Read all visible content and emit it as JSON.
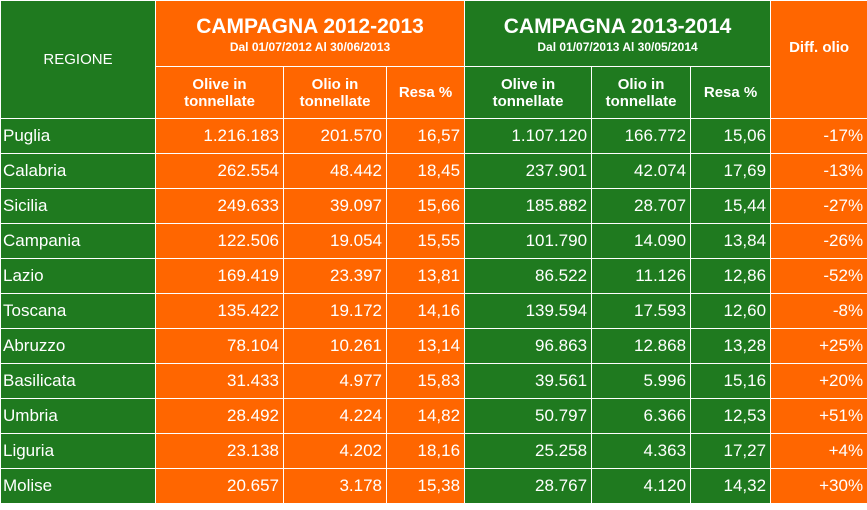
{
  "header": {
    "region_label": "REGIONE",
    "campaign1": {
      "title": "CAMPAGNA 2012-2013",
      "subtitle": "Dal 01/07/2012 Al 30/06/2013"
    },
    "campaign2": {
      "title": "CAMPAGNA 2013-2014",
      "subtitle": "Dal 01/07/2013 Al 30/05/2014"
    },
    "diff_label": "Diff. olio",
    "col_olive": "Olive in tonnellate",
    "col_olio": "Olio in tonnellate",
    "col_resa": "Resa %"
  },
  "colors": {
    "green": "#1f7a1f",
    "orange": "#ff6600",
    "text": "#ffffff"
  },
  "rows": [
    {
      "region": "Puglia",
      "olive1": "1.216.183",
      "olio1": "201.570",
      "resa1": "16,57",
      "olive2": "1.107.120",
      "olio2": "166.772",
      "resa2": "15,06",
      "diff": "-17%"
    },
    {
      "region": "Calabria",
      "olive1": "262.554",
      "olio1": "48.442",
      "resa1": "18,45",
      "olive2": "237.901",
      "olio2": "42.074",
      "resa2": "17,69",
      "diff": "-13%"
    },
    {
      "region": "Sicilia",
      "olive1": "249.633",
      "olio1": "39.097",
      "resa1": "15,66",
      "olive2": "185.882",
      "olio2": "28.707",
      "resa2": "15,44",
      "diff": "-27%"
    },
    {
      "region": "Campania",
      "olive1": "122.506",
      "olio1": "19.054",
      "resa1": "15,55",
      "olive2": "101.790",
      "olio2": "14.090",
      "resa2": "13,84",
      "diff": "-26%"
    },
    {
      "region": "Lazio",
      "olive1": "169.419",
      "olio1": "23.397",
      "resa1": "13,81",
      "olive2": "86.522",
      "olio2": "11.126",
      "resa2": "12,86",
      "diff": "-52%"
    },
    {
      "region": "Toscana",
      "olive1": "135.422",
      "olio1": "19.172",
      "resa1": "14,16",
      "olive2": "139.594",
      "olio2": "17.593",
      "resa2": "12,60",
      "diff": "-8%"
    },
    {
      "region": "Abruzzo",
      "olive1": "78.104",
      "olio1": "10.261",
      "resa1": "13,14",
      "olive2": "96.863",
      "olio2": "12.868",
      "resa2": "13,28",
      "diff": "+25%"
    },
    {
      "region": "Basilicata",
      "olive1": "31.433",
      "olio1": "4.977",
      "resa1": "15,83",
      "olive2": "39.561",
      "olio2": "5.996",
      "resa2": "15,16",
      "diff": "+20%"
    },
    {
      "region": "Umbria",
      "olive1": "28.492",
      "olio1": "4.224",
      "resa1": "14,82",
      "olive2": "50.797",
      "olio2": "6.366",
      "resa2": "12,53",
      "diff": "+51%"
    },
    {
      "region": "Liguria",
      "olive1": "23.138",
      "olio1": "4.202",
      "resa1": "18,16",
      "olive2": "25.258",
      "olio2": "4.363",
      "resa2": "17,27",
      "diff": "+4%"
    },
    {
      "region": "Molise",
      "olive1": "20.657",
      "olio1": "3.178",
      "resa1": "15,38",
      "olive2": "28.767",
      "olio2": "4.120",
      "resa2": "14,32",
      "diff": "+30%"
    }
  ]
}
